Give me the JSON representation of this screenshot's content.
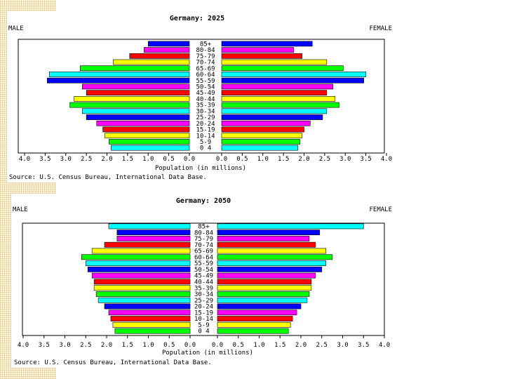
{
  "charts": [
    {
      "title": "Germany: 2025",
      "male_label": "MALE",
      "female_label": "FEMALE",
      "xlabel": "Population (in millions)",
      "source": "Source: U.S. Census Bureau, International Data Base."
    },
    {
      "title": "Germany: 2050",
      "male_label": "MALE",
      "female_label": "FEMALE",
      "xlabel": "Population (in millions)",
      "source": "Source: U.S. Census Bureau, International Data Base."
    }
  ],
  "chart_data": [
    {
      "type": "bar",
      "orientation": "horizontal-pyramid",
      "title": "Germany: 2025",
      "categories": [
        "85+",
        "80-84",
        "75-79",
        "70-74",
        "65-69",
        "60-64",
        "55-59",
        "50-54",
        "45-49",
        "40-44",
        "35-39",
        "30-34",
        "25-29",
        "20-24",
        "15-19",
        "10-14",
        "5-9",
        "0-4"
      ],
      "category_labels_as_shown": [
        "85+",
        "80-84",
        "75-79",
        "70-74",
        "65-69",
        "60-64",
        "55-59",
        "50-54",
        "45-49",
        "40-44",
        "35-39",
        "30-34",
        "25-29",
        "20-24",
        "15-19",
        "10-14",
        "5-9",
        "0 4"
      ],
      "series": [
        {
          "name": "MALE",
          "values": [
            1.0,
            1.1,
            1.45,
            1.85,
            2.65,
            3.4,
            3.45,
            2.6,
            2.5,
            2.8,
            2.9,
            2.6,
            2.5,
            2.25,
            2.1,
            2.05,
            1.95,
            1.9
          ]
        },
        {
          "name": "FEMALE",
          "values": [
            2.2,
            1.75,
            1.95,
            2.55,
            2.95,
            3.5,
            3.45,
            2.7,
            2.55,
            2.75,
            2.85,
            2.55,
            2.45,
            2.15,
            2.0,
            1.95,
            1.9,
            1.85
          ]
        }
      ],
      "xlim": [
        0,
        4
      ],
      "xticks": [
        "4.0",
        "3.5",
        "3.0",
        "2.5",
        "2.0",
        "1.5",
        "1.0",
        "0.5",
        "0.0",
        "0.0",
        "0.5",
        "1.0",
        "1.5",
        "2.0",
        "2.5",
        "3.0",
        "3.5",
        "4.0"
      ],
      "xlabel": "Population (in millions)",
      "bar_colors": [
        "#0000ff",
        "#ff00ff",
        "#ff0000",
        "#ffff00",
        "#00ff00",
        "#00ffff",
        "#0000ff",
        "#ff00ff",
        "#ff0000",
        "#ffff00",
        "#00ff00",
        "#00ffff",
        "#0000ff",
        "#ff00ff",
        "#ff0000",
        "#ffff00",
        "#00ff00",
        "#00ffff"
      ],
      "grid": false
    },
    {
      "type": "bar",
      "orientation": "horizontal-pyramid",
      "title": "Germany: 2050",
      "categories": [
        "85+",
        "80-84",
        "75-79",
        "70-74",
        "65-69",
        "60-64",
        "55-59",
        "50-54",
        "45-49",
        "40-44",
        "35-39",
        "30-34",
        "25-29",
        "20-24",
        "15-19",
        "10-14",
        "5-9",
        "0-4"
      ],
      "category_labels_as_shown": [
        "85+",
        "80-84",
        "75-79",
        "70-74",
        "65-69",
        "60-64",
        "55-59",
        "50-54",
        "45-49",
        "40-44",
        "35-39",
        "30-34",
        "25-29",
        "20-24",
        "15-19",
        "10-14",
        "5-9",
        "0 4"
      ],
      "series": [
        {
          "name": "MALE",
          "values": [
            1.95,
            1.75,
            1.75,
            2.05,
            2.35,
            2.6,
            2.5,
            2.45,
            2.35,
            2.3,
            2.3,
            2.25,
            2.2,
            2.05,
            1.95,
            1.9,
            1.85,
            1.8
          ]
        },
        {
          "name": "FEMALE",
          "values": [
            3.5,
            2.45,
            2.2,
            2.35,
            2.6,
            2.75,
            2.6,
            2.5,
            2.35,
            2.25,
            2.25,
            2.2,
            2.15,
            2.0,
            1.9,
            1.8,
            1.75,
            1.7
          ]
        }
      ],
      "xlim": [
        0,
        4
      ],
      "xticks": [
        "4.0",
        "3.5",
        "3.0",
        "2.5",
        "2.0",
        "1.5",
        "1.0",
        "0.5",
        "0.0",
        "0.0",
        "0.5",
        "1.0",
        "1.5",
        "2.0",
        "2.5",
        "3.0",
        "3.5",
        "4.0"
      ],
      "xlabel": "Population (in millions)",
      "bar_colors": [
        "#00ffff",
        "#0000ff",
        "#ff00ff",
        "#ff0000",
        "#ffff00",
        "#00ff00",
        "#00ffff",
        "#0000ff",
        "#ff00ff",
        "#ff0000",
        "#ffff00",
        "#00ff00",
        "#00ffff",
        "#0000ff",
        "#ff00ff",
        "#ff0000",
        "#ffff00",
        "#00ff00"
      ],
      "grid": false
    }
  ]
}
